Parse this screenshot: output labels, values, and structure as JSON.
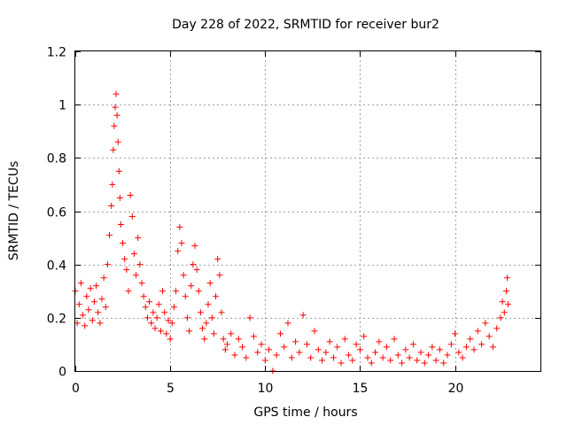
{
  "chart_data": {
    "type": "scatter",
    "title": "Day 228 of 2022, SRMTID for receiver bur2",
    "xlabel": "GPS time / hours",
    "ylabel": "SRMTID / TECUs",
    "xlim": [
      0,
      24.5
    ],
    "ylim": [
      0,
      1.2
    ],
    "xticks": [
      0,
      5,
      10,
      15,
      20
    ],
    "xtick_labels": [
      "0",
      "5",
      "10",
      "15",
      "20"
    ],
    "yticks": [
      0,
      0.2,
      0.4,
      0.6,
      0.8,
      1,
      1.2
    ],
    "ytick_labels": [
      "0",
      "0.2",
      "0.4",
      "0.6",
      "0.8",
      "1",
      "1.2"
    ],
    "grid": true,
    "legend": "none",
    "series": [
      {
        "name": "bur2",
        "marker": "+",
        "color": "#ff0000",
        "points": [
          [
            0.0,
            0.3
          ],
          [
            0.1,
            0.18
          ],
          [
            0.2,
            0.25
          ],
          [
            0.3,
            0.33
          ],
          [
            0.4,
            0.21
          ],
          [
            0.5,
            0.17
          ],
          [
            0.6,
            0.28
          ],
          [
            0.7,
            0.23
          ],
          [
            0.8,
            0.31
          ],
          [
            0.9,
            0.19
          ],
          [
            1.0,
            0.26
          ],
          [
            1.1,
            0.32
          ],
          [
            1.2,
            0.22
          ],
          [
            1.3,
            0.18
          ],
          [
            1.4,
            0.27
          ],
          [
            1.5,
            0.35
          ],
          [
            1.6,
            0.24
          ],
          [
            1.7,
            0.4
          ],
          [
            1.8,
            0.51
          ],
          [
            1.9,
            0.62
          ],
          [
            1.95,
            0.7
          ],
          [
            2.0,
            0.83
          ],
          [
            2.05,
            0.92
          ],
          [
            2.1,
            0.99
          ],
          [
            2.15,
            1.04
          ],
          [
            2.2,
            0.96
          ],
          [
            2.25,
            0.86
          ],
          [
            2.3,
            0.75
          ],
          [
            2.35,
            0.65
          ],
          [
            2.4,
            0.55
          ],
          [
            2.5,
            0.48
          ],
          [
            2.6,
            0.42
          ],
          [
            2.7,
            0.38
          ],
          [
            2.8,
            0.3
          ],
          [
            2.9,
            0.66
          ],
          [
            3.0,
            0.58
          ],
          [
            3.1,
            0.44
          ],
          [
            3.2,
            0.36
          ],
          [
            3.3,
            0.5
          ],
          [
            3.4,
            0.4
          ],
          [
            3.5,
            0.33
          ],
          [
            3.6,
            0.28
          ],
          [
            3.7,
            0.24
          ],
          [
            3.8,
            0.2
          ],
          [
            3.9,
            0.26
          ],
          [
            4.0,
            0.18
          ],
          [
            4.1,
            0.22
          ],
          [
            4.2,
            0.16
          ],
          [
            4.3,
            0.2
          ],
          [
            4.4,
            0.25
          ],
          [
            4.5,
            0.15
          ],
          [
            4.6,
            0.3
          ],
          [
            4.7,
            0.22
          ],
          [
            4.8,
            0.14
          ],
          [
            4.9,
            0.19
          ],
          [
            5.0,
            0.12
          ],
          [
            5.1,
            0.18
          ],
          [
            5.2,
            0.24
          ],
          [
            5.3,
            0.3
          ],
          [
            5.4,
            0.45
          ],
          [
            5.5,
            0.54
          ],
          [
            5.6,
            0.48
          ],
          [
            5.7,
            0.36
          ],
          [
            5.8,
            0.28
          ],
          [
            5.9,
            0.2
          ],
          [
            6.0,
            0.15
          ],
          [
            6.1,
            0.32
          ],
          [
            6.2,
            0.4
          ],
          [
            6.3,
            0.47
          ],
          [
            6.4,
            0.38
          ],
          [
            6.5,
            0.3
          ],
          [
            6.6,
            0.22
          ],
          [
            6.7,
            0.16
          ],
          [
            6.8,
            0.12
          ],
          [
            6.9,
            0.18
          ],
          [
            7.0,
            0.25
          ],
          [
            7.1,
            0.33
          ],
          [
            7.2,
            0.2
          ],
          [
            7.3,
            0.14
          ],
          [
            7.4,
            0.28
          ],
          [
            7.5,
            0.42
          ],
          [
            7.6,
            0.36
          ],
          [
            7.7,
            0.22
          ],
          [
            7.8,
            0.12
          ],
          [
            7.9,
            0.08
          ],
          [
            8.0,
            0.1
          ],
          [
            8.2,
            0.14
          ],
          [
            8.4,
            0.06
          ],
          [
            8.6,
            0.12
          ],
          [
            8.8,
            0.09
          ],
          [
            9.0,
            0.05
          ],
          [
            9.2,
            0.2
          ],
          [
            9.4,
            0.13
          ],
          [
            9.6,
            0.07
          ],
          [
            9.8,
            0.1
          ],
          [
            10.0,
            0.04
          ],
          [
            10.2,
            0.08
          ],
          [
            10.4,
            0.0
          ],
          [
            10.6,
            0.06
          ],
          [
            10.8,
            0.14
          ],
          [
            11.0,
            0.09
          ],
          [
            11.2,
            0.18
          ],
          [
            11.4,
            0.05
          ],
          [
            11.6,
            0.11
          ],
          [
            11.8,
            0.07
          ],
          [
            12.0,
            0.21
          ],
          [
            12.2,
            0.1
          ],
          [
            12.4,
            0.05
          ],
          [
            12.6,
            0.15
          ],
          [
            12.8,
            0.08
          ],
          [
            13.0,
            0.04
          ],
          [
            13.2,
            0.07
          ],
          [
            13.4,
            0.11
          ],
          [
            13.6,
            0.05
          ],
          [
            13.8,
            0.09
          ],
          [
            14.0,
            0.03
          ],
          [
            14.2,
            0.12
          ],
          [
            14.4,
            0.06
          ],
          [
            14.6,
            0.04
          ],
          [
            14.8,
            0.1
          ],
          [
            15.0,
            0.08
          ],
          [
            15.2,
            0.13
          ],
          [
            15.4,
            0.05
          ],
          [
            15.6,
            0.03
          ],
          [
            15.8,
            0.07
          ],
          [
            16.0,
            0.11
          ],
          [
            16.2,
            0.05
          ],
          [
            16.4,
            0.09
          ],
          [
            16.6,
            0.04
          ],
          [
            16.8,
            0.12
          ],
          [
            17.0,
            0.06
          ],
          [
            17.2,
            0.03
          ],
          [
            17.4,
            0.08
          ],
          [
            17.6,
            0.05
          ],
          [
            17.8,
            0.1
          ],
          [
            18.0,
            0.04
          ],
          [
            18.2,
            0.07
          ],
          [
            18.4,
            0.03
          ],
          [
            18.6,
            0.06
          ],
          [
            18.8,
            0.09
          ],
          [
            19.0,
            0.04
          ],
          [
            19.2,
            0.08
          ],
          [
            19.4,
            0.03
          ],
          [
            19.6,
            0.06
          ],
          [
            19.8,
            0.1
          ],
          [
            20.0,
            0.14
          ],
          [
            20.2,
            0.07
          ],
          [
            20.4,
            0.05
          ],
          [
            20.6,
            0.09
          ],
          [
            20.8,
            0.12
          ],
          [
            21.0,
            0.08
          ],
          [
            21.2,
            0.15
          ],
          [
            21.4,
            0.1
          ],
          [
            21.6,
            0.18
          ],
          [
            21.8,
            0.13
          ],
          [
            22.0,
            0.09
          ],
          [
            22.2,
            0.16
          ],
          [
            22.4,
            0.2
          ],
          [
            22.5,
            0.26
          ],
          [
            22.6,
            0.22
          ],
          [
            22.7,
            0.3
          ],
          [
            22.75,
            0.35
          ],
          [
            22.8,
            0.25
          ]
        ]
      }
    ]
  }
}
